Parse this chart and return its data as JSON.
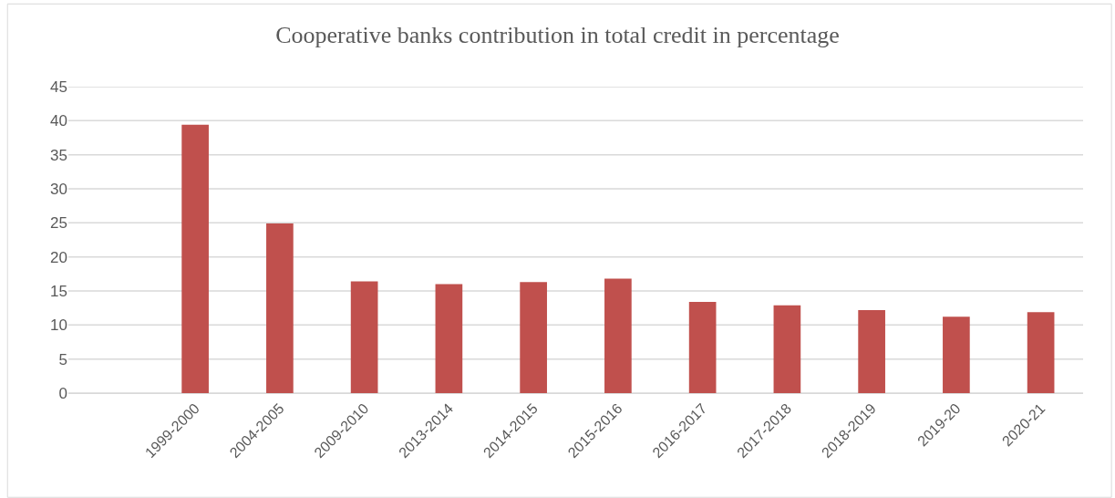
{
  "chart_data": {
    "type": "bar",
    "title": "Cooperative banks contribution in total credit in percentage",
    "categories": [
      null,
      "1999-2000",
      "2004-2005",
      "2009-2010",
      "2013-2014",
      "2014-2015",
      "2015-2016",
      "2016-2017",
      "2017-2018",
      "2018-2019",
      "2019-20",
      "2020-21"
    ],
    "values": [
      null,
      39.4,
      24.9,
      16.4,
      16.0,
      16.3,
      16.8,
      13.4,
      12.9,
      12.2,
      11.2,
      11.9
    ],
    "color": "#c0504d",
    "ylim": [
      0,
      45
    ],
    "yticks": [
      0,
      5,
      10,
      15,
      20,
      25,
      30,
      35,
      40,
      45
    ],
    "grid": "y"
  }
}
